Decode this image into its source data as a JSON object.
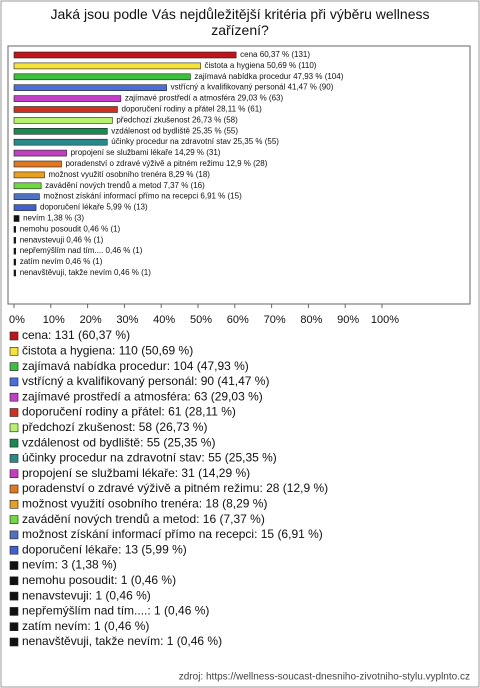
{
  "chart_data": {
    "type": "bar",
    "orientation": "horizontal",
    "title": "Jaká jsou podle Vás nejdůležitější kritéria při výběru wellness zařízení?",
    "categories": [
      "cena",
      "čistota a hygiena",
      "zajímavá nabídka procedur",
      "vstřícný a kvalifikovaný personál",
      "zajímavé prostředí a atmosféra",
      "doporučení rodiny a přátel",
      "předchozí zkušenost",
      "vzdálenost od bydliště",
      "účinky procedur na zdravotní stav",
      "propojení se službami lékaře",
      "poradenství o zdravé výživě a pitném režimu",
      "možnost využití osobního trenéra",
      "zavádění nových trendů a metod",
      "možnost získání informací přímo na recepci",
      "doporučení lékaře",
      "nevím",
      "nemohu posoudit",
      "nenavstevuji",
      "nepřemýšlím nad tím....",
      "zatím nevím",
      "nenavštěvuji, takže nevím"
    ],
    "values": [
      60.37,
      50.69,
      47.93,
      41.47,
      29.03,
      28.11,
      26.73,
      25.35,
      25.35,
      14.29,
      12.9,
      8.29,
      7.37,
      6.91,
      5.99,
      1.38,
      0.46,
      0.46,
      0.46,
      0.46,
      0.46
    ],
    "value_labels": [
      "60,37 % (131)",
      "50,69 % (110)",
      "47,93 % (104)",
      "41,47 % (90)",
      "29,03 % (63)",
      "28,11 % (61)",
      "26,73 % (58)",
      "25,35 % (55)",
      "25,35 % (55)",
      "14,29 % (31)",
      "12,9 % (28)",
      "8,29 % (18)",
      "7,37 % (16)",
      "6,91 % (15)",
      "5,99 % (13)",
      "1,38 % (3)",
      "0,46 % (1)",
      "0,46 % (1)",
      "0,46 % (1)",
      "0,46 % (1)",
      "0,46 % (1)"
    ],
    "legend_labels": [
      "cena: 131 (60,37 %)",
      "čistota a hygiena: 110 (50,69 %)",
      "zajímavá nabídka procedur: 104 (47,93 %)",
      "vstřícný a kvalifikovaný personál: 90 (41,47 %)",
      "zajímavé prostředí a atmosféra: 63 (29,03 %)",
      "doporučení rodiny a přátel: 61 (28,11 %)",
      "předchozí zkušenost: 58 (26,73 %)",
      "vzdálenost od bydliště: 55 (25,35 %)",
      "účinky procedur na zdravotní stav: 55 (25,35 %)",
      "propojení se službami lékaře: 31 (14,29 %)",
      "poradenství o zdravé výživě a pitném režimu: 28 (12,9 %)",
      "možnost využití osobního trenéra: 18 (8,29 %)",
      "zavádění nových trendů a metod: 16 (7,37 %)",
      "možnost získání informací přímo na recepci: 15 (6,91 %)",
      "doporučení lékaře: 13 (5,99 %)",
      "nevím: 3 (1,38 %)",
      "nemohu posoudit: 1 (0,46 %)",
      "nenavstevuji: 1 (0,46 %)",
      "nepřemýšlím nad tím....: 1 (0,46 %)",
      "zatím nevím: 1 (0,46 %)",
      "nenavštěvuji, takže nevím: 1 (0,46 %)"
    ],
    "colors": [
      "#c0141b",
      "#f5e33a",
      "#3cbf3c",
      "#4a6fd8",
      "#c040c8",
      "#d03020",
      "#b8f070",
      "#1a8a50",
      "#2a8a8a",
      "#c040c0",
      "#e07820",
      "#e8a020",
      "#70d840",
      "#5070c0",
      "#4060d0",
      "#111111",
      "#111111",
      "#111111",
      "#111111",
      "#111111",
      "#111111"
    ],
    "xlim": [
      0,
      100
    ],
    "xticks": [
      {
        "value": 0,
        "label": "0%"
      },
      {
        "value": 10,
        "label": "10%"
      },
      {
        "value": 20,
        "label": "20%"
      },
      {
        "value": 30,
        "label": "30%"
      },
      {
        "value": 40,
        "label": "40%"
      },
      {
        "value": 50,
        "label": "50%"
      },
      {
        "value": 60,
        "label": "60%"
      },
      {
        "value": 70,
        "label": "70%"
      },
      {
        "value": 80,
        "label": "80%"
      },
      {
        "value": 90,
        "label": "90%"
      },
      {
        "value": 100,
        "label": "100%"
      }
    ],
    "grid": false,
    "source": "zdroj: https://wellness-soucast-dnesniho-zivotniho-stylu.vyplnto.cz"
  }
}
